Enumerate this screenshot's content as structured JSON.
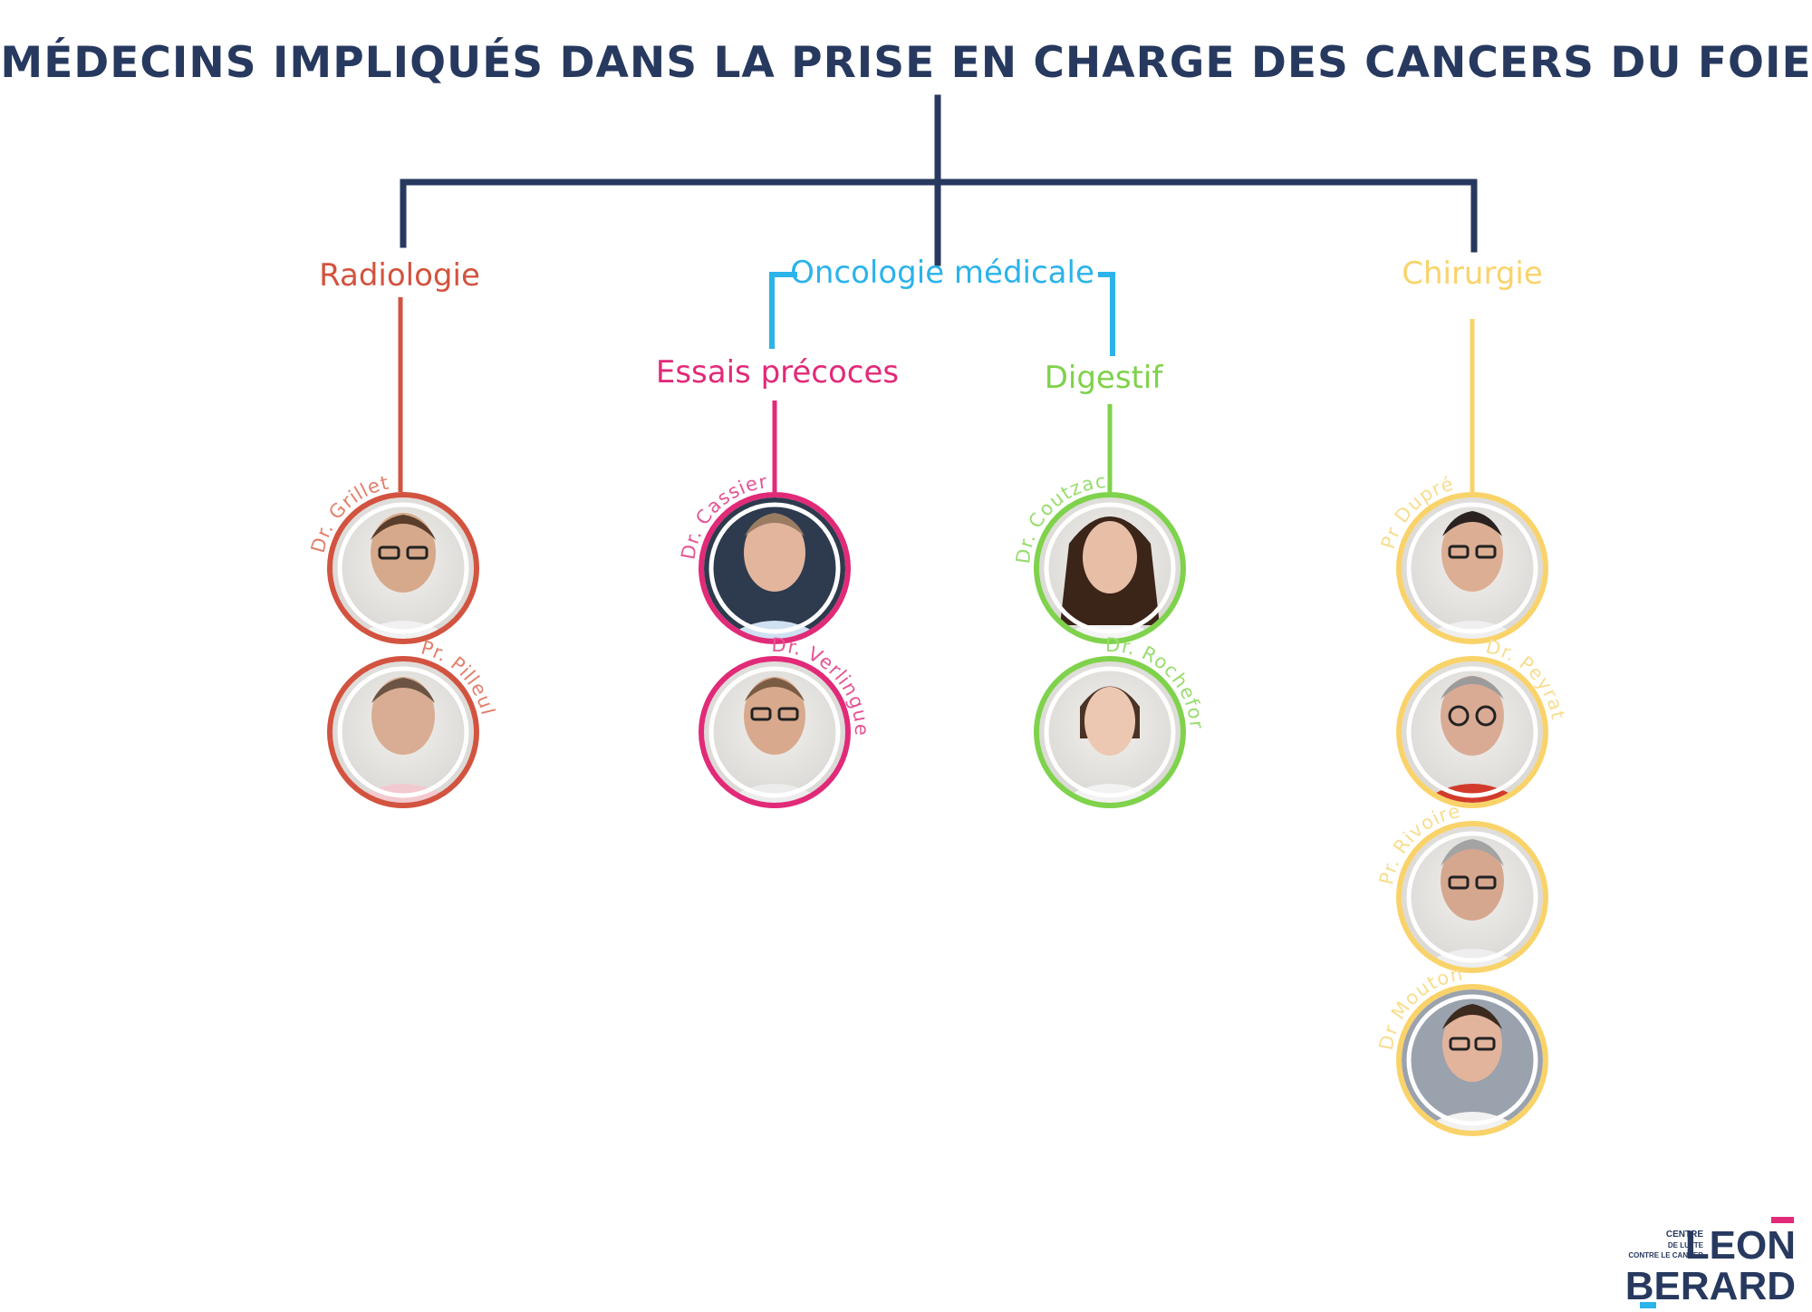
{
  "title": "MÉDECINS IMPLIQUÉS DANS LA PRISE EN CHARGE DES CANCERS DU FOIE",
  "colors": {
    "navy": "#27395f",
    "radiologie": "#d2533f",
    "oncologie": "#2bb3ea",
    "essais": "#e12a78",
    "digestif": "#7fd24b",
    "chirurgie": "#f9d36a"
  },
  "departments": {
    "radiologie": "Radiologie",
    "oncologie": "Oncologie médicale",
    "essais": "Essais précoces",
    "digestif": "Digestif",
    "chirurgie": "Chirurgie"
  },
  "doctors": {
    "grillet": "Dr. Grillet",
    "pilleul": "Pr. Pilleul",
    "cassier": "Dr. Cassier",
    "verlingue": "Dr. Verlingue",
    "coutzac": "Dr. Coutzac",
    "rochefort": "Dr. Rochefort",
    "dupre": "Pr Dupré",
    "peyrat": "Dr. Peyrat",
    "rivoire": "Pr. Rivoire",
    "mouton": "Dr Mouton"
  },
  "logo": {
    "line1": "CENTRE",
    "line2": "DE LUTTE",
    "line3": "CONTRE LE CANCER",
    "word1": "LEON",
    "word2": "BERARD"
  }
}
